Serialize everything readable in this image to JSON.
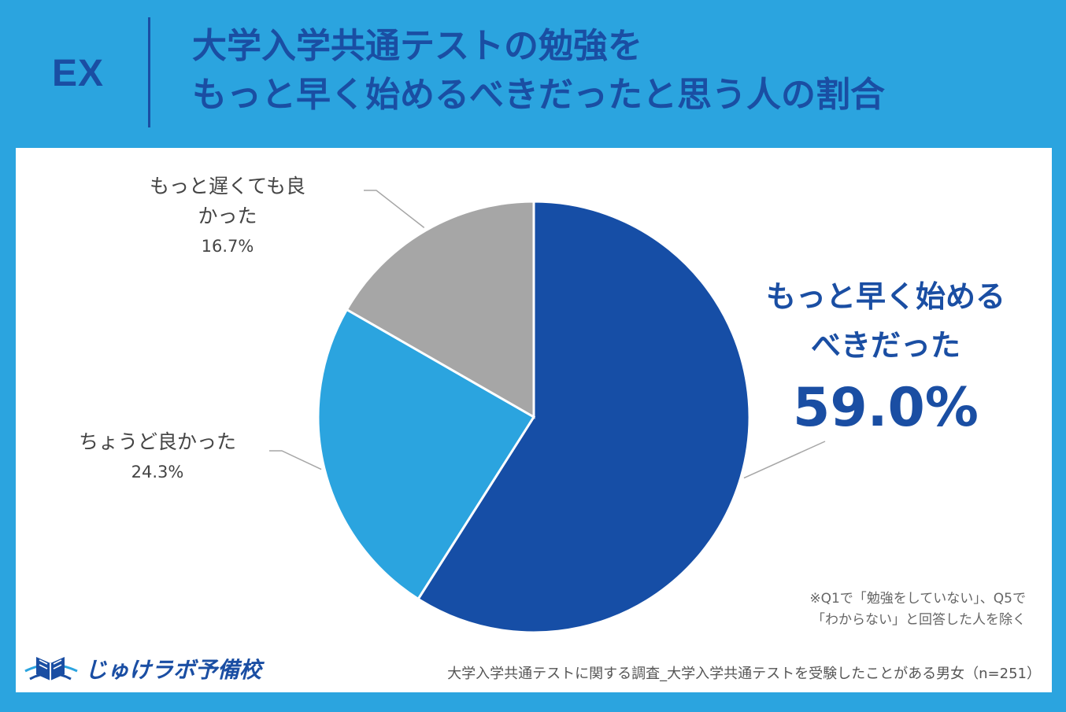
{
  "header": {
    "badge": "EX",
    "title_line1": "大学入学共通テストの勉強を",
    "title_line2": "もっと早く始めるべきだったと思う人の割合"
  },
  "chart_data": {
    "type": "pie",
    "slices": [
      {
        "label": "もっと早く始めるべきだった",
        "value": 59.0,
        "color": "#164ea6"
      },
      {
        "label": "ちょうど良かった",
        "value": 24.3,
        "color": "#2ba4df"
      },
      {
        "label": "もっと遅くても良かった",
        "value": 16.7,
        "color": "#a6a6a6"
      }
    ]
  },
  "labels": {
    "early_line1": "もっと早く始める",
    "early_line2": "べきだった",
    "early_pct": "59.0%",
    "just_text": "ちょうど良かった",
    "just_pct": "24.3%",
    "late_line1": "もっと遅くても良",
    "late_line2": "かった",
    "late_pct": "16.7%"
  },
  "note": {
    "line1": "※Q1で「勉強をしていない」、Q5で",
    "line2": "「わからない」と回答した人を除く"
  },
  "source": "大学入学共通テストに関する調査_大学入学共通テストを受験したことがある男女（n=251）",
  "logo": {
    "text": "じゅけラボ予備校",
    "icon": "book-logo-icon"
  },
  "colors": {
    "background": "#2ba4df",
    "accent": "#1a4ea3"
  }
}
